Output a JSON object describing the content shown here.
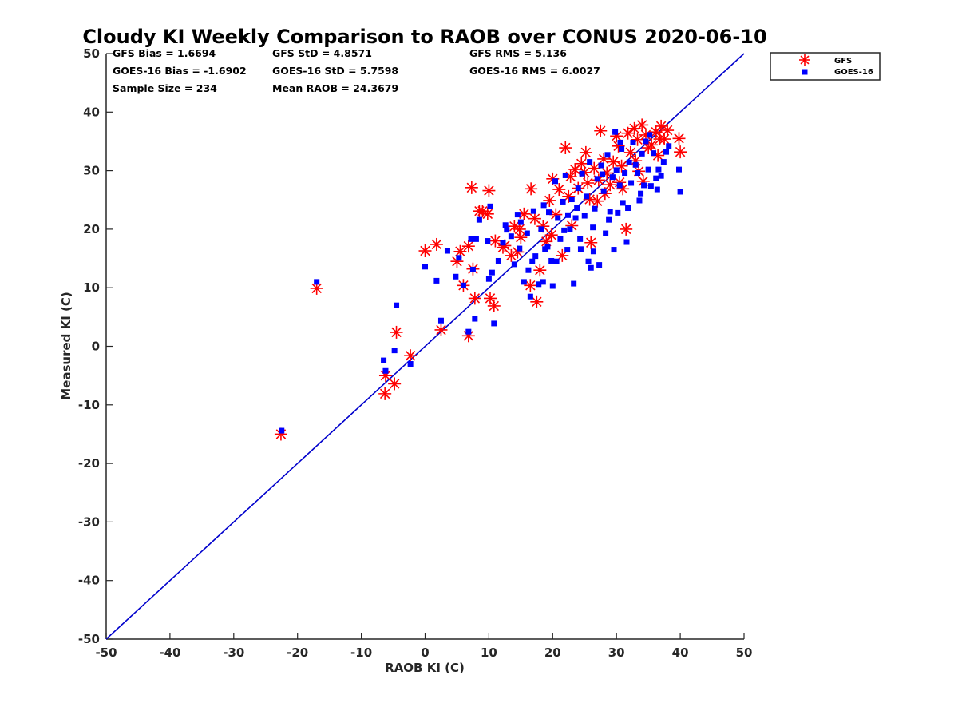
{
  "chart_data": {
    "type": "scatter",
    "title": "Cloudy KI Weekly Comparison to RAOB over CONUS 2020-06-10",
    "xlabel": "RAOB KI (C)",
    "ylabel": "Measured KI (C)",
    "xlim": [
      -50,
      50
    ],
    "ylim": [
      -50,
      50
    ],
    "xticks": [
      "-50",
      "-40",
      "-30",
      "-20",
      "-10",
      "0",
      "10",
      "20",
      "30",
      "40",
      "50"
    ],
    "yticks": [
      "50",
      "40",
      "30",
      "20",
      "10",
      "0",
      "-10",
      "-20",
      "-30",
      "-40",
      "-50"
    ],
    "grid": false,
    "legend_position": "outside top-right",
    "reference_line": {
      "type": "1:1",
      "color": "#0000cc"
    },
    "stats": {
      "gfs_bias": "GFS Bias = 1.6694",
      "gfs_std": "GFS StD = 4.8571",
      "gfs_rms": "GFS RMS = 5.136",
      "goes_bias": "GOES-16 Bias = -1.6902",
      "goes_std": "GOES-16 StD = 5.7598",
      "goes_rms": "GOES-16 RMS = 6.0027",
      "sample_size": "Sample Size = 234",
      "mean_raob": "Mean RAOB = 24.3679"
    },
    "series": [
      {
        "name": "GFS",
        "marker": "asterisk",
        "color": "#ff0000",
        "points": [
          [
            -22.6,
            -15.0
          ],
          [
            -17.0,
            9.9
          ],
          [
            -6.3,
            -8.1
          ],
          [
            -6.2,
            -5.0
          ],
          [
            -4.8,
            -6.4
          ],
          [
            -4.5,
            2.4
          ],
          [
            -2.3,
            -1.6
          ],
          [
            0.0,
            16.3
          ],
          [
            1.8,
            17.4
          ],
          [
            2.5,
            2.8
          ],
          [
            5.0,
            14.5
          ],
          [
            5.5,
            16.2
          ],
          [
            6.0,
            10.4
          ],
          [
            6.8,
            17.1
          ],
          [
            6.8,
            1.8
          ],
          [
            7.5,
            13.2
          ],
          [
            7.8,
            8.2
          ],
          [
            7.3,
            27.1
          ],
          [
            8.5,
            23.1
          ],
          [
            9.8,
            22.6
          ],
          [
            10.0,
            26.6
          ],
          [
            10.2,
            8.2
          ],
          [
            10.8,
            6.9
          ],
          [
            11.0,
            18.0
          ],
          [
            12.5,
            17.2
          ],
          [
            13.5,
            15.5
          ],
          [
            14.0,
            20.5
          ],
          [
            14.5,
            16.1
          ],
          [
            15.0,
            18.6
          ],
          [
            15.5,
            22.6
          ],
          [
            16.5,
            10.4
          ],
          [
            16.6,
            26.9
          ],
          [
            17.5,
            7.6
          ],
          [
            18.0,
            13.0
          ],
          [
            18.5,
            20.5
          ],
          [
            19.0,
            17.9
          ],
          [
            19.5,
            24.9
          ],
          [
            20.0,
            28.6
          ],
          [
            20.5,
            22.5
          ],
          [
            21.0,
            26.8
          ],
          [
            21.5,
            15.5
          ],
          [
            22.0,
            33.9
          ],
          [
            22.5,
            25.6
          ],
          [
            22.8,
            29.0
          ],
          [
            23.5,
            30.2
          ],
          [
            24.0,
            27.0
          ],
          [
            24.5,
            31.2
          ],
          [
            25.0,
            29.7
          ],
          [
            25.5,
            27.9
          ],
          [
            25.8,
            25.1
          ],
          [
            26.0,
            17.7
          ],
          [
            26.5,
            30.4
          ],
          [
            27.0,
            24.8
          ],
          [
            27.5,
            36.8
          ],
          [
            28.0,
            32.0
          ],
          [
            28.5,
            29.6
          ],
          [
            29.0,
            27.6
          ],
          [
            29.5,
            31.5
          ],
          [
            30.0,
            35.9
          ],
          [
            30.3,
            34.2
          ],
          [
            30.8,
            30.8
          ],
          [
            31.5,
            20.0
          ],
          [
            31.8,
            36.4
          ],
          [
            32.2,
            33.1
          ],
          [
            32.8,
            37.2
          ],
          [
            33.3,
            35.3
          ],
          [
            33.5,
            29.9
          ],
          [
            34.0,
            37.8
          ],
          [
            34.2,
            28.2
          ],
          [
            34.6,
            36.1
          ],
          [
            35.5,
            34.4
          ],
          [
            36.2,
            36.6
          ],
          [
            36.5,
            32.6
          ],
          [
            37.0,
            37.6
          ],
          [
            37.5,
            35.4
          ],
          [
            38.0,
            36.9
          ],
          [
            39.8,
            35.5
          ],
          [
            40.0,
            33.2
          ],
          [
            30.5,
            28.0
          ],
          [
            27.2,
            28.4
          ],
          [
            25.2,
            33.1
          ],
          [
            23.0,
            20.6
          ],
          [
            19.8,
            19.0
          ],
          [
            17.2,
            21.8
          ],
          [
            14.8,
            20.0
          ],
          [
            12.2,
            16.9
          ],
          [
            9.0,
            23.1
          ],
          [
            31.0,
            26.9
          ],
          [
            33.0,
            31.7
          ],
          [
            28.2,
            26.1
          ],
          [
            35.0,
            33.9
          ],
          [
            36.8,
            35.4
          ]
        ]
      },
      {
        "name": "GOES-16",
        "marker": "square",
        "color": "#0000ff",
        "points": [
          [
            -22.5,
            -14.4
          ],
          [
            -17.0,
            11.0
          ],
          [
            -6.5,
            -2.4
          ],
          [
            -6.2,
            -4.2
          ],
          [
            -4.8,
            -0.7
          ],
          [
            -4.5,
            7.0
          ],
          [
            -2.3,
            -3.0
          ],
          [
            0.0,
            13.6
          ],
          [
            1.8,
            11.2
          ],
          [
            2.5,
            4.4
          ],
          [
            3.5,
            16.3
          ],
          [
            4.8,
            11.9
          ],
          [
            5.3,
            15.1
          ],
          [
            6.0,
            10.4
          ],
          [
            6.8,
            2.5
          ],
          [
            7.2,
            18.3
          ],
          [
            7.5,
            13.1
          ],
          [
            7.8,
            4.7
          ],
          [
            8.5,
            21.6
          ],
          [
            9.8,
            18.0
          ],
          [
            10.0,
            11.5
          ],
          [
            10.2,
            23.9
          ],
          [
            10.5,
            12.6
          ],
          [
            10.8,
            3.9
          ],
          [
            11.5,
            14.6
          ],
          [
            12.2,
            17.7
          ],
          [
            12.8,
            19.9
          ],
          [
            13.5,
            18.8
          ],
          [
            14.0,
            14.0
          ],
          [
            14.5,
            22.5
          ],
          [
            14.8,
            16.7
          ],
          [
            15.0,
            21.2
          ],
          [
            15.5,
            11.0
          ],
          [
            16.0,
            19.3
          ],
          [
            16.5,
            8.5
          ],
          [
            16.8,
            14.5
          ],
          [
            17.0,
            23.1
          ],
          [
            17.3,
            15.4
          ],
          [
            17.8,
            10.6
          ],
          [
            18.2,
            20.0
          ],
          [
            18.5,
            11.0
          ],
          [
            18.8,
            16.6
          ],
          [
            19.2,
            17.0
          ],
          [
            19.8,
            14.6
          ],
          [
            20.0,
            10.3
          ],
          [
            20.4,
            28.2
          ],
          [
            20.8,
            21.9
          ],
          [
            21.2,
            18.3
          ],
          [
            21.6,
            24.7
          ],
          [
            22.0,
            29.2
          ],
          [
            22.3,
            16.5
          ],
          [
            22.7,
            20.0
          ],
          [
            23.0,
            25.1
          ],
          [
            23.3,
            10.7
          ],
          [
            23.6,
            21.9
          ],
          [
            24.0,
            27.0
          ],
          [
            24.3,
            18.3
          ],
          [
            24.6,
            29.5
          ],
          [
            25.0,
            22.3
          ],
          [
            25.3,
            25.6
          ],
          [
            25.6,
            14.5
          ],
          [
            26.0,
            13.4
          ],
          [
            26.3,
            20.3
          ],
          [
            26.6,
            23.5
          ],
          [
            27.0,
            28.6
          ],
          [
            27.3,
            13.9
          ],
          [
            27.6,
            30.9
          ],
          [
            28.0,
            26.5
          ],
          [
            28.3,
            19.3
          ],
          [
            28.6,
            32.7
          ],
          [
            29.0,
            23.0
          ],
          [
            29.4,
            28.9
          ],
          [
            29.8,
            36.6
          ],
          [
            30.0,
            30.1
          ],
          [
            30.2,
            22.8
          ],
          [
            30.5,
            27.5
          ],
          [
            30.8,
            33.7
          ],
          [
            31.0,
            24.5
          ],
          [
            31.3,
            29.6
          ],
          [
            31.6,
            17.8
          ],
          [
            32.0,
            31.4
          ],
          [
            32.3,
            27.9
          ],
          [
            32.6,
            34.8
          ],
          [
            33.0,
            31.0
          ],
          [
            33.3,
            29.6
          ],
          [
            33.6,
            24.9
          ],
          [
            34.0,
            32.9
          ],
          [
            34.3,
            27.5
          ],
          [
            34.6,
            35.0
          ],
          [
            35.0,
            30.2
          ],
          [
            35.4,
            27.4
          ],
          [
            35.8,
            33.0
          ],
          [
            36.2,
            28.7
          ],
          [
            36.6,
            30.2
          ],
          [
            37.0,
            29.1
          ],
          [
            37.4,
            31.5
          ],
          [
            37.8,
            33.2
          ],
          [
            38.2,
            34.2
          ],
          [
            39.8,
            30.2
          ],
          [
            40.0,
            26.4
          ],
          [
            26.4,
            16.2
          ],
          [
            24.4,
            16.6
          ],
          [
            22.4,
            22.4
          ],
          [
            20.6,
            14.5
          ],
          [
            18.6,
            24.1
          ],
          [
            16.2,
            13.0
          ],
          [
            12.6,
            20.7
          ],
          [
            8.0,
            18.3
          ],
          [
            28.8,
            21.6
          ],
          [
            29.6,
            16.5
          ],
          [
            31.8,
            23.6
          ],
          [
            33.8,
            26.1
          ],
          [
            36.4,
            26.8
          ],
          [
            35.2,
            36.1
          ],
          [
            30.6,
            34.8
          ],
          [
            27.8,
            29.4
          ],
          [
            25.8,
            31.5
          ],
          [
            23.8,
            23.6
          ],
          [
            21.8,
            19.8
          ],
          [
            19.4,
            22.9
          ]
        ]
      }
    ]
  }
}
